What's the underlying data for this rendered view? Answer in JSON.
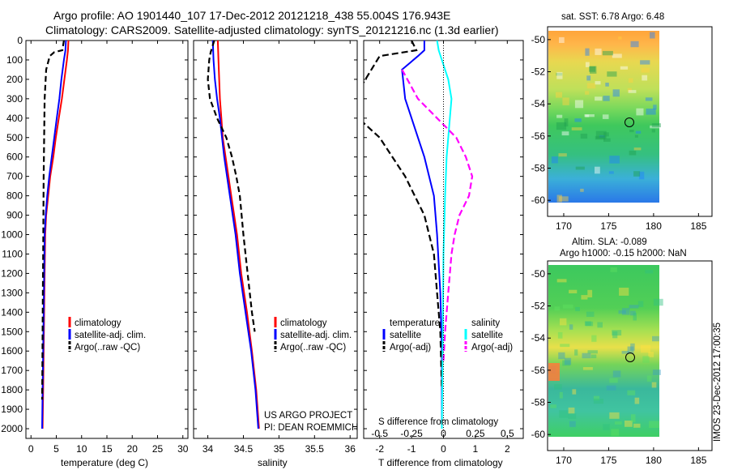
{
  "title": {
    "line1": "Argo profile: AO 1901440_107 17-Dec-2012 20121218_438 55.004S 176.943E",
    "line2": "Climatology: CARS2009. Satellite-adjusted climatology: synTS_20121216.nc (1.3d earlier)"
  },
  "colors": {
    "climatology": "#ff0000",
    "satellite": "#0000ff",
    "argo": "#000000",
    "sat_salinity": "#00ffff",
    "argo_salinity": "#ff00ff"
  },
  "chart_data": [
    {
      "type": "line",
      "id": "temperature",
      "xlabel": "temperature (deg C)",
      "xlim": [
        -1,
        31
      ],
      "xticks": [
        0,
        5,
        10,
        15,
        20,
        25,
        30
      ],
      "ylim": [
        0,
        2050
      ],
      "yticks": [
        0,
        100,
        200,
        300,
        400,
        500,
        600,
        700,
        800,
        900,
        1000,
        1100,
        1200,
        1300,
        1400,
        1500,
        1600,
        1700,
        1800,
        1900,
        2000
      ],
      "legend": {
        "placement": "lower-right",
        "entries": [
          "climatology",
          "satellite-adj. clim.",
          "Argo(..raw -QC)"
        ]
      },
      "series": [
        {
          "name": "climatology",
          "color": "#ff0000",
          "dash": "",
          "points": [
            [
              7.4,
              0
            ],
            [
              7.3,
              50
            ],
            [
              7.1,
              100
            ],
            [
              6.6,
              200
            ],
            [
              6.1,
              300
            ],
            [
              5.5,
              400
            ],
            [
              4.9,
              500
            ],
            [
              4.4,
              600
            ],
            [
              3.8,
              700
            ],
            [
              3.4,
              800
            ],
            [
              3.0,
              900
            ],
            [
              2.8,
              1000
            ],
            [
              2.7,
              1200
            ],
            [
              2.6,
              1400
            ],
            [
              2.5,
              1600
            ],
            [
              2.4,
              1800
            ],
            [
              2.3,
              2000
            ]
          ]
        },
        {
          "name": "satellite-adj. clim.",
          "color": "#0000ff",
          "dash": "",
          "points": [
            [
              6.9,
              0
            ],
            [
              6.8,
              50
            ],
            [
              6.5,
              100
            ],
            [
              6.0,
              200
            ],
            [
              5.6,
              300
            ],
            [
              5.1,
              400
            ],
            [
              4.6,
              500
            ],
            [
              4.1,
              600
            ],
            [
              3.6,
              700
            ],
            [
              3.2,
              800
            ],
            [
              2.9,
              900
            ],
            [
              2.7,
              1000
            ],
            [
              2.6,
              1200
            ],
            [
              2.5,
              1400
            ],
            [
              2.4,
              1600
            ],
            [
              2.3,
              1800
            ],
            [
              2.2,
              2000
            ]
          ]
        },
        {
          "name": "Argo(..raw -QC)",
          "color": "#000000",
          "dash": "7 4",
          "points": [
            [
              6.5,
              0
            ],
            [
              6.2,
              50
            ],
            [
              4.6,
              60
            ],
            [
              3.7,
              80
            ],
            [
              3.0,
              150
            ],
            [
              2.7,
              300
            ],
            [
              2.6,
              500
            ],
            [
              2.5,
              700
            ],
            [
              2.45,
              900
            ],
            [
              2.4,
              1100
            ],
            [
              2.35,
              1300
            ],
            [
              2.3,
              1500
            ],
            [
              2.25,
              1700
            ],
            [
              2.2,
              1850
            ]
          ]
        }
      ]
    },
    {
      "type": "line",
      "id": "salinity",
      "xlabel": "salinity",
      "xlim": [
        33.8,
        36.1
      ],
      "xticks": [
        34,
        34.5,
        35,
        35.5,
        36
      ],
      "ylim": [
        0,
        2050
      ],
      "legend": {
        "placement": "lower-right",
        "entries": [
          "climatology",
          "satellite-adj. clim.",
          "Argo(..raw -QC)"
        ]
      },
      "series": [
        {
          "name": "climatology",
          "color": "#ff0000",
          "dash": "",
          "points": [
            [
              34.14,
              0
            ],
            [
              34.15,
              100
            ],
            [
              34.16,
              200
            ],
            [
              34.17,
              300
            ],
            [
              34.19,
              400
            ],
            [
              34.21,
              500
            ],
            [
              34.25,
              600
            ],
            [
              34.29,
              700
            ],
            [
              34.33,
              800
            ],
            [
              34.37,
              900
            ],
            [
              34.41,
              1000
            ],
            [
              34.47,
              1200
            ],
            [
              34.55,
              1400
            ],
            [
              34.62,
              1600
            ],
            [
              34.68,
              1800
            ],
            [
              34.72,
              2000
            ]
          ]
        },
        {
          "name": "satellite-adj. clim.",
          "color": "#0000ff",
          "dash": "",
          "points": [
            [
              34.07,
              0
            ],
            [
              34.08,
              100
            ],
            [
              34.1,
              200
            ],
            [
              34.13,
              300
            ],
            [
              34.17,
              400
            ],
            [
              34.2,
              500
            ],
            [
              34.23,
              600
            ],
            [
              34.27,
              700
            ],
            [
              34.31,
              800
            ],
            [
              34.35,
              900
            ],
            [
              34.39,
              1000
            ],
            [
              34.45,
              1200
            ],
            [
              34.53,
              1400
            ],
            [
              34.61,
              1600
            ],
            [
              34.67,
              1800
            ],
            [
              34.71,
              2000
            ]
          ]
        },
        {
          "name": "Argo(..raw -QC)",
          "color": "#000000",
          "dash": "7 4",
          "points": [
            [
              34.09,
              0
            ],
            [
              34.04,
              60
            ],
            [
              34.02,
              100
            ],
            [
              34.0,
              200
            ],
            [
              34.03,
              300
            ],
            [
              34.13,
              400
            ],
            [
              34.26,
              500
            ],
            [
              34.34,
              600
            ],
            [
              34.4,
              700
            ],
            [
              34.45,
              800
            ],
            [
              34.5,
              1000
            ],
            [
              34.56,
              1200
            ],
            [
              34.62,
              1400
            ],
            [
              34.66,
              1500
            ]
          ]
        }
      ],
      "annotation": [
        "US ARGO PROJECT",
        "PI: DEAN ROEMMICH"
      ]
    },
    {
      "type": "line",
      "id": "difference",
      "xlabel": "T difference from climatology",
      "xlim": [
        -2.5,
        2.5
      ],
      "xticks": [
        -2,
        -1,
        0,
        1,
        2
      ],
      "x2label": "S difference from climatology",
      "x2ticks": [
        "-0.5",
        "-0.25",
        "0",
        "0.25",
        "0.5"
      ],
      "ylim": [
        0,
        2050
      ],
      "legend": {
        "placement": "lower-center",
        "entries": [
          "temperature",
          "satellite",
          "Argo(-adj)",
          "salinity",
          "satellite",
          "Argo(-adj)"
        ]
      },
      "series": [
        {
          "name": "temperature satellite",
          "color": "#0000ff",
          "dash": "",
          "points": [
            [
              -0.6,
              0
            ],
            [
              -0.6,
              50
            ],
            [
              -0.8,
              80
            ],
            [
              -1.3,
              150
            ],
            [
              -1.2,
              300
            ],
            [
              -1.0,
              400
            ],
            [
              -0.8,
              500
            ],
            [
              -0.6,
              600
            ],
            [
              -0.45,
              700
            ],
            [
              -0.3,
              800
            ],
            [
              -0.2,
              1000
            ],
            [
              -0.1,
              1300
            ],
            [
              -0.05,
              1600
            ],
            [
              -0.05,
              2000
            ]
          ]
        },
        {
          "name": "temperature Argo(-adj)",
          "color": "#000000",
          "dash": "8 4",
          "points": [
            [
              -1.0,
              0
            ],
            [
              -0.85,
              50
            ],
            [
              -2.0,
              80
            ],
            [
              -3.0,
              350
            ],
            [
              -2.0,
              500
            ],
            [
              -1.2,
              700
            ],
            [
              -0.6,
              900
            ],
            [
              -0.3,
              1100
            ],
            [
              -0.2,
              1300
            ],
            [
              -0.1,
              1500
            ],
            [
              -0.05,
              1800
            ]
          ]
        },
        {
          "name": "salinity satellite",
          "color": "#00ffff",
          "dash": "",
          "points": [
            [
              -0.2,
              0
            ],
            [
              -0.15,
              50
            ],
            [
              -0.05,
              100
            ],
            [
              0.15,
              200
            ],
            [
              0.25,
              300
            ],
            [
              0.2,
              400
            ],
            [
              0.15,
              500
            ],
            [
              0.1,
              600
            ],
            [
              0.05,
              800
            ],
            [
              0.0,
              1100
            ],
            [
              -0.05,
              2000
            ]
          ]
        },
        {
          "name": "salinity Argo(-adj)",
          "color": "#ff00ff",
          "dash": "8 4",
          "points": [
            [
              -1.3,
              150
            ],
            [
              -0.8,
              300
            ],
            [
              -0.2,
              400
            ],
            [
              0.4,
              500
            ],
            [
              0.7,
              600
            ],
            [
              0.9,
              700
            ],
            [
              0.8,
              800
            ],
            [
              0.5,
              900
            ],
            [
              0.35,
              1000
            ],
            [
              0.25,
              1100
            ],
            [
              0.15,
              1300
            ],
            [
              0.05,
              1500
            ],
            [
              0.0,
              1650
            ]
          ]
        }
      ]
    },
    {
      "type": "heatmap",
      "id": "sst_map",
      "title": "sat. SST: 6.78  Argo: 6.48",
      "xticks": [
        170,
        175,
        180,
        185
      ],
      "yticks": [
        -50,
        -52,
        -54,
        -56,
        -58,
        -60
      ],
      "xlim": [
        168.2,
        186.5
      ],
      "ylim": [
        -61,
        -49.2
      ],
      "marker": {
        "lon": 176.943,
        "lat": -55.004
      }
    },
    {
      "type": "heatmap",
      "id": "sla_map",
      "title": "Altim. SLA: -0.089",
      "subtitle": "Argo h1000: -0.15  h2000: NaN",
      "xticks": [
        170,
        175,
        180,
        185
      ],
      "yticks": [
        -50,
        -52,
        -54,
        -56,
        -58,
        -60
      ],
      "xlim": [
        168.2,
        186.5
      ],
      "ylim": [
        -61,
        -49.2
      ],
      "marker": {
        "lon": 176.943,
        "lat": -55.004
      }
    }
  ],
  "side_stamp": "IMOS 23-Dec-2012 17:00:35"
}
